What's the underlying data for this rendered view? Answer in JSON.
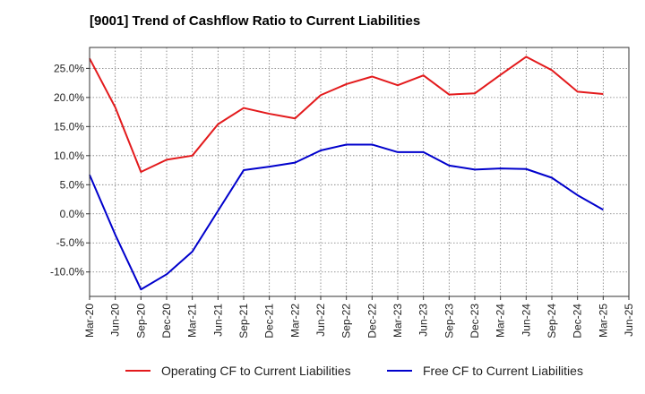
{
  "chart_data": {
    "type": "line",
    "title": "[9001]  Trend of Cashflow Ratio to Current Liabilities",
    "xlabel": "",
    "ylabel": "",
    "x": [
      "Mar-20",
      "Jun-20",
      "Sep-20",
      "Dec-20",
      "Mar-21",
      "Jun-21",
      "Sep-21",
      "Dec-21",
      "Mar-22",
      "Jun-22",
      "Sep-22",
      "Dec-22",
      "Mar-23",
      "Jun-23",
      "Sep-23",
      "Dec-23",
      "Mar-24",
      "Jun-24",
      "Sep-24",
      "Dec-24",
      "Mar-25"
    ],
    "x_tick_labels": [
      "Mar-20",
      "Jun-20",
      "Sep-20",
      "Dec-20",
      "Mar-21",
      "Jun-21",
      "Sep-21",
      "Dec-21",
      "Mar-22",
      "Jun-22",
      "Sep-22",
      "Dec-22",
      "Mar-23",
      "Jun-23",
      "Sep-23",
      "Dec-23",
      "Mar-24",
      "Jun-24",
      "Sep-24",
      "Dec-24",
      "Mar-25",
      "Jun-25"
    ],
    "y_ticks": [
      -10,
      -5,
      0,
      5,
      10,
      15,
      20,
      25
    ],
    "y_tick_labels": [
      "-10.0%",
      "-5.0%",
      "0.0%",
      "5.0%",
      "10.0%",
      "15.0%",
      "20.0%",
      "25.0%"
    ],
    "ylim": [
      -14.2,
      28.6
    ],
    "grid": true,
    "legend_position": "bottom",
    "series": [
      {
        "name": "Operating CF to Current Liabilities",
        "color": "#e31a1c",
        "values": [
          26.7,
          18.3,
          7.2,
          9.3,
          10.0,
          15.4,
          18.2,
          17.2,
          16.4,
          20.4,
          22.3,
          23.6,
          22.1,
          23.8,
          20.5,
          20.7,
          23.9,
          27.0,
          24.7,
          21.0,
          20.6
        ]
      },
      {
        "name": "Free CF to Current Liabilities",
        "color": "#0000cc",
        "values": [
          6.7,
          -3.6,
          -13.0,
          -10.4,
          -6.5,
          0.5,
          7.5,
          8.1,
          8.8,
          10.9,
          11.9,
          11.9,
          10.6,
          10.6,
          8.3,
          7.6,
          7.8,
          7.7,
          6.2,
          3.2,
          0.7
        ]
      }
    ]
  }
}
